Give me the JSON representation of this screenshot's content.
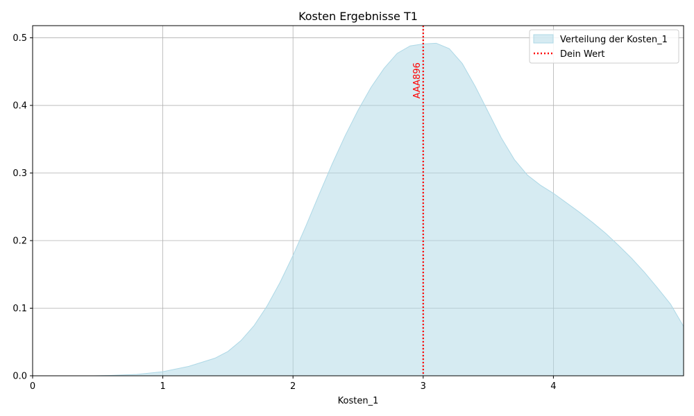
{
  "chart_data": {
    "type": "area",
    "title": "Kosten Ergebnisse T1",
    "xlabel": "Kosten_1",
    "ylabel": "",
    "xlim": [
      0,
      5
    ],
    "ylim": [
      0,
      0.518
    ],
    "grid": true,
    "x_ticks": [
      "0",
      "1",
      "2",
      "3",
      "4"
    ],
    "x_tick_values": [
      0,
      1,
      2,
      3,
      4
    ],
    "y_ticks": [
      "0.0",
      "0.1",
      "0.2",
      "0.3",
      "0.4",
      "0.5"
    ],
    "y_tick_values": [
      0.0,
      0.1,
      0.2,
      0.3,
      0.4,
      0.5
    ],
    "legend_position": "top-right",
    "series": [
      {
        "name": "Verteilung der Kosten_1",
        "kind": "density-area",
        "fill_color": "#add8e6",
        "x": [
          0.47,
          0.6,
          0.8,
          1.0,
          1.2,
          1.4,
          1.5,
          1.6,
          1.7,
          1.8,
          1.9,
          2.0,
          2.1,
          2.2,
          2.3,
          2.4,
          2.5,
          2.6,
          2.7,
          2.8,
          2.9,
          3.0,
          3.1,
          3.2,
          3.3,
          3.4,
          3.5,
          3.6,
          3.7,
          3.8,
          3.9,
          4.0,
          4.1,
          4.2,
          4.3,
          4.4,
          4.5,
          4.6,
          4.7,
          4.8,
          4.9,
          5.0
        ],
        "y": [
          0.0,
          0.0005,
          0.002,
          0.006,
          0.014,
          0.026,
          0.036,
          0.052,
          0.074,
          0.103,
          0.138,
          0.178,
          0.222,
          0.268,
          0.313,
          0.355,
          0.393,
          0.427,
          0.455,
          0.477,
          0.488,
          0.491,
          0.492,
          0.484,
          0.462,
          0.428,
          0.39,
          0.352,
          0.32,
          0.297,
          0.282,
          0.27,
          0.256,
          0.242,
          0.227,
          0.211,
          0.193,
          0.174,
          0.153,
          0.13,
          0.106,
          0.073
        ]
      },
      {
        "name": "Dein Wert",
        "kind": "vline",
        "line_style": "dotted",
        "color": "#ff0000",
        "x": 3.0
      }
    ],
    "annotations": [
      {
        "text": "AAA896",
        "x": 3.0,
        "y": 0.41,
        "color": "#ff0000",
        "rotation": "vertical"
      }
    ]
  }
}
